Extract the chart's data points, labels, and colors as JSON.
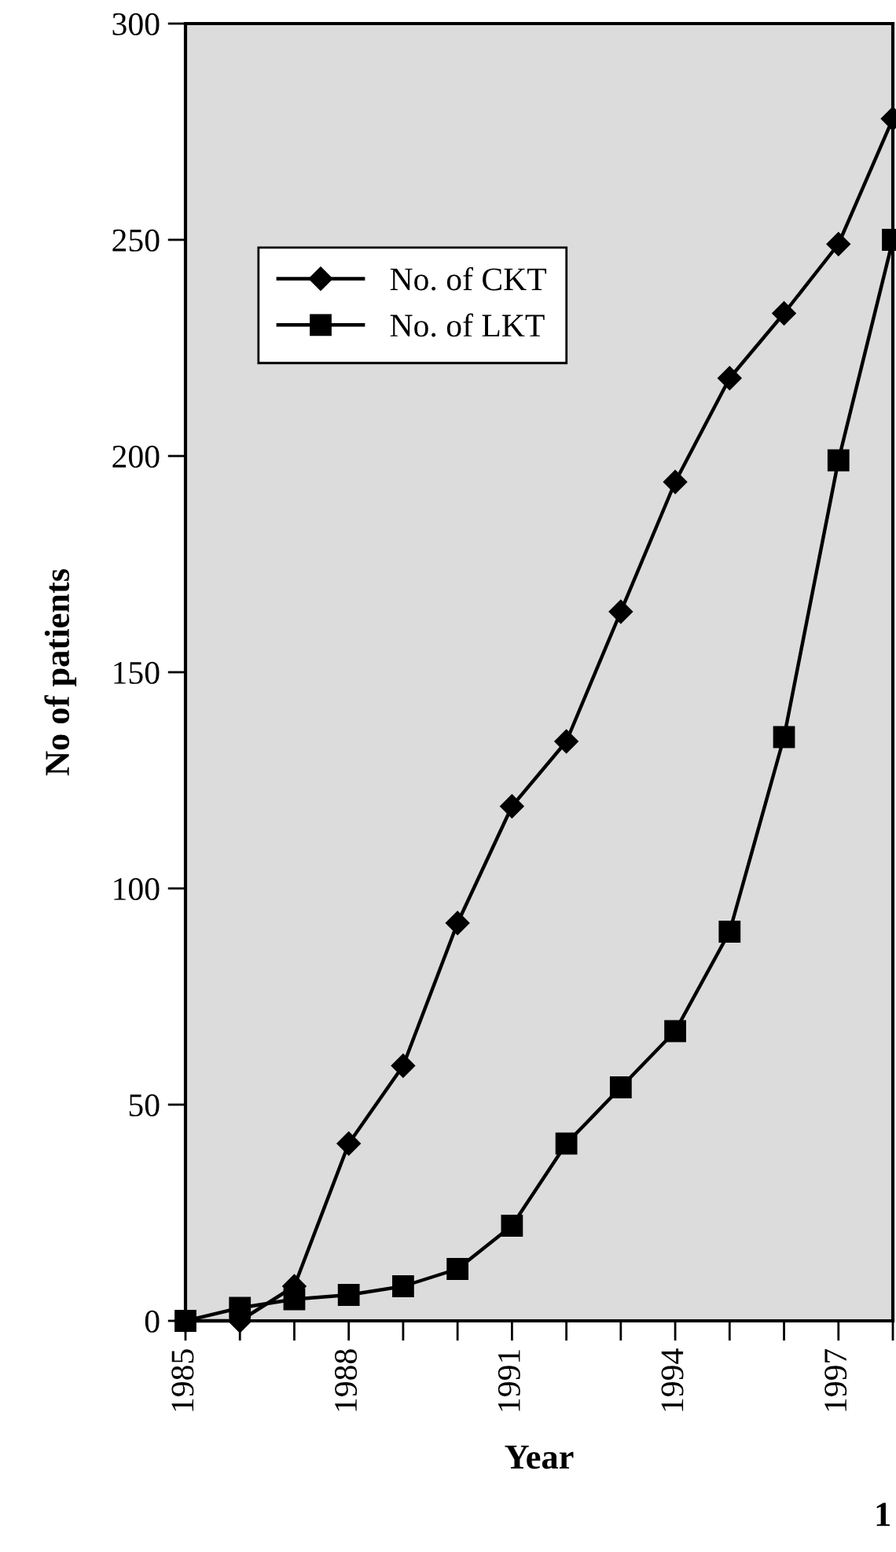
{
  "chart_data": {
    "type": "line",
    "xlabel": "Year",
    "ylabel": "No of patients",
    "x": [
      1985,
      1986,
      1987,
      1988,
      1989,
      1990,
      1991,
      1992,
      1993,
      1994,
      1995,
      1996,
      1997,
      1998
    ],
    "series": [
      {
        "name": "No. of CKT",
        "color": "#000000",
        "marker": "diamond",
        "values": [
          0,
          0,
          8,
          41,
          59,
          92,
          119,
          134,
          164,
          194,
          218,
          233,
          249,
          278
        ]
      },
      {
        "name": "No. of LKT",
        "color": "#000000",
        "marker": "square",
        "values": [
          0,
          3,
          5,
          6,
          8,
          12,
          22,
          41,
          54,
          67,
          90,
          135,
          199,
          250
        ]
      }
    ],
    "xlim": [
      1985,
      1998
    ],
    "xticks": [
      1985,
      {
        "value": 1986,
        "label": null
      },
      {
        "value": 1987,
        "label": null
      },
      1988,
      {
        "value": 1989,
        "label": null
      },
      {
        "value": 1990,
        "label": null
      },
      1991,
      {
        "value": 1992,
        "label": null
      },
      {
        "value": 1993,
        "label": null
      },
      1994,
      {
        "value": 1995,
        "label": null
      },
      {
        "value": 1996,
        "label": null
      },
      1997,
      {
        "value": 1998,
        "label": null
      }
    ],
    "ylim": [
      0,
      300
    ],
    "yticks": [
      0,
      50,
      100,
      150,
      200,
      250,
      300
    ],
    "grid": false,
    "legend": "top left",
    "line_style": "solid",
    "annotations": [
      "1"
    ]
  }
}
